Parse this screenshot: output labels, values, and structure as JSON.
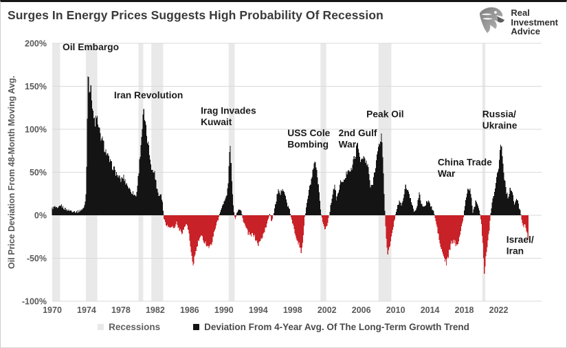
{
  "header": {
    "title": "Surges In Energy Prices Suggests High Probability Of Recession",
    "logo": {
      "icon": "eagle-icon",
      "line1": "Real",
      "line2": "Investment",
      "line3": "Advice"
    }
  },
  "legend": {
    "recessions_label": "Recessions",
    "deviation_label": "Deviation From 4-Year Avg. Of The Long-Term Growth Trend"
  },
  "colors": {
    "positive_bar": "#141414",
    "negative_bar": "#c82127",
    "recession_band": "#e9e9e9",
    "gridline": "#d9d9d9",
    "tick_text": "#595959",
    "annotation_text": "#1a1a1a"
  },
  "chart_data": {
    "type": "bar",
    "title": "Surges In Energy Prices Suggests High Probability Of Recession",
    "xlabel": "",
    "ylabel": "Oil Price Deviation From 48-Month Moving Avg.",
    "unit": "percent deviation",
    "frequency": "monthly",
    "grid": "horizontal",
    "legend_position": "bottom",
    "xlim_year": [
      1970,
      2027
    ],
    "ylim_pct": [
      -100,
      200
    ],
    "x_ticks": [
      1970,
      1974,
      1978,
      1982,
      1986,
      1990,
      1994,
      1998,
      2002,
      2006,
      2010,
      2014,
      2018,
      2022
    ],
    "y_ticks_pct": [
      200,
      150,
      100,
      50,
      0,
      -50,
      -100
    ],
    "recession_bands_year": [
      [
        1970.0,
        1970.92
      ],
      [
        1973.92,
        1975.25
      ],
      [
        1980.05,
        1980.6
      ],
      [
        1981.55,
        1982.92
      ],
      [
        1990.55,
        1991.25
      ],
      [
        2001.25,
        2001.92
      ],
      [
        2008.0,
        2009.5
      ],
      [
        2020.1,
        2020.45
      ]
    ],
    "annotations": [
      {
        "id": "oil-embargo",
        "lines": [
          "Oil Embargo"
        ],
        "year": 1971.2,
        "pct": 192
      },
      {
        "id": "iran-revolution",
        "lines": [
          "Iran Revolution"
        ],
        "year": 1977.2,
        "pct": 136
      },
      {
        "id": "iraq-invades-kuwait",
        "lines": [
          "Irag Invades",
          "Kuwait"
        ],
        "year": 1987.3,
        "pct": 118
      },
      {
        "id": "uss-cole-bombing",
        "lines": [
          "USS Cole",
          "Bombing"
        ],
        "year": 1997.4,
        "pct": 92
      },
      {
        "id": "2nd-gulf-war",
        "lines": [
          "2nd Gulf",
          "War"
        ],
        "year": 2003.35,
        "pct": 92
      },
      {
        "id": "peak-oil",
        "lines": [
          "Peak Oil"
        ],
        "year": 2006.6,
        "pct": 114
      },
      {
        "id": "china-trade-war",
        "lines": [
          "China Trade",
          "War"
        ],
        "year": 2014.9,
        "pct": 58
      },
      {
        "id": "russia-ukraine",
        "lines": [
          "Russia/",
          "Ukraine"
        ],
        "year": 2020.1,
        "pct": 114
      },
      {
        "id": "israel-iran",
        "lines": [
          "Israel/",
          "Iran"
        ],
        "year": 2022.9,
        "pct": -32
      }
    ],
    "series_name": "Oil price deviation from 48-month moving average (%)",
    "series_keypoints": [
      [
        1970.0,
        8
      ],
      [
        1970.3,
        10
      ],
      [
        1970.6,
        7
      ],
      [
        1971.0,
        12
      ],
      [
        1971.4,
        8
      ],
      [
        1971.8,
        6
      ],
      [
        1972.3,
        5
      ],
      [
        1972.8,
        4
      ],
      [
        1973.2,
        5
      ],
      [
        1973.6,
        8
      ],
      [
        1973.8,
        12
      ],
      [
        1973.92,
        25
      ],
      [
        1974.05,
        80
      ],
      [
        1974.15,
        173
      ],
      [
        1974.35,
        150
      ],
      [
        1974.6,
        138
      ],
      [
        1974.85,
        112
      ],
      [
        1975.0,
        103
      ],
      [
        1975.15,
        120
      ],
      [
        1975.35,
        102
      ],
      [
        1975.6,
        93
      ],
      [
        1975.9,
        85
      ],
      [
        1976.2,
        76
      ],
      [
        1976.5,
        68
      ],
      [
        1976.8,
        60
      ],
      [
        1977.1,
        56
      ],
      [
        1977.4,
        50
      ],
      [
        1977.7,
        45
      ],
      [
        1978.0,
        41
      ],
      [
        1978.3,
        45
      ],
      [
        1978.6,
        38
      ],
      [
        1978.9,
        32
      ],
      [
        1979.2,
        28
      ],
      [
        1979.5,
        25
      ],
      [
        1979.75,
        22
      ],
      [
        1979.95,
        38
      ],
      [
        1980.15,
        60
      ],
      [
        1980.35,
        85
      ],
      [
        1980.55,
        108
      ],
      [
        1980.65,
        120
      ],
      [
        1980.8,
        107
      ],
      [
        1981.0,
        93
      ],
      [
        1981.2,
        80
      ],
      [
        1981.4,
        68
      ],
      [
        1981.6,
        56
      ],
      [
        1981.75,
        48
      ],
      [
        1981.9,
        53
      ],
      [
        1982.05,
        40
      ],
      [
        1982.25,
        30
      ],
      [
        1982.45,
        22
      ],
      [
        1982.65,
        26
      ],
      [
        1982.85,
        14
      ],
      [
        1983.0,
        -4
      ],
      [
        1983.3,
        -11
      ],
      [
        1983.6,
        -14
      ],
      [
        1983.9,
        -12
      ],
      [
        1984.2,
        -16
      ],
      [
        1984.5,
        -8
      ],
      [
        1984.8,
        -17
      ],
      [
        1985.1,
        -20
      ],
      [
        1985.4,
        -15
      ],
      [
        1985.65,
        -9
      ],
      [
        1985.9,
        -20
      ],
      [
        1986.15,
        -45
      ],
      [
        1986.4,
        -58
      ],
      [
        1986.65,
        -47
      ],
      [
        1986.9,
        -35
      ],
      [
        1987.15,
        -27
      ],
      [
        1987.45,
        -25
      ],
      [
        1987.75,
        -31
      ],
      [
        1988.05,
        -35
      ],
      [
        1988.35,
        -38
      ],
      [
        1988.6,
        -32
      ],
      [
        1988.85,
        -20
      ],
      [
        1989.1,
        -10
      ],
      [
        1989.35,
        -5
      ],
      [
        1989.55,
        4
      ],
      [
        1989.8,
        10
      ],
      [
        1990.0,
        15
      ],
      [
        1990.2,
        20
      ],
      [
        1990.4,
        27
      ],
      [
        1990.55,
        45
      ],
      [
        1990.7,
        88
      ],
      [
        1990.85,
        55
      ],
      [
        1991.0,
        22
      ],
      [
        1991.15,
        6
      ],
      [
        1991.3,
        -6
      ],
      [
        1991.5,
        3
      ],
      [
        1991.75,
        8
      ],
      [
        1992.0,
        5
      ],
      [
        1992.2,
        -5
      ],
      [
        1992.5,
        -13
      ],
      [
        1992.8,
        -20
      ],
      [
        1993.1,
        -25
      ],
      [
        1993.4,
        -21
      ],
      [
        1993.7,
        -28
      ],
      [
        1994.0,
        -34
      ],
      [
        1994.3,
        -29
      ],
      [
        1994.6,
        -22
      ],
      [
        1994.9,
        -14
      ],
      [
        1995.15,
        -5
      ],
      [
        1995.35,
        3
      ],
      [
        1995.55,
        -8
      ],
      [
        1995.8,
        2
      ],
      [
        1996.0,
        12
      ],
      [
        1996.3,
        30
      ],
      [
        1996.55,
        22
      ],
      [
        1996.85,
        34
      ],
      [
        1997.1,
        24
      ],
      [
        1997.4,
        12
      ],
      [
        1997.7,
        5
      ],
      [
        1997.95,
        -8
      ],
      [
        1998.25,
        -20
      ],
      [
        1998.55,
        -28
      ],
      [
        1998.8,
        -36
      ],
      [
        1999.0,
        -43
      ],
      [
        1999.2,
        -28
      ],
      [
        1999.4,
        -4
      ],
      [
        1999.6,
        10
      ],
      [
        1999.85,
        24
      ],
      [
        2000.1,
        38
      ],
      [
        2000.4,
        52
      ],
      [
        2000.65,
        62
      ],
      [
        2000.85,
        48
      ],
      [
        2001.05,
        28
      ],
      [
        2001.3,
        3
      ],
      [
        2001.55,
        -10
      ],
      [
        2001.8,
        -17
      ],
      [
        2002.0,
        -11
      ],
      [
        2002.2,
        -2
      ],
      [
        2002.45,
        12
      ],
      [
        2002.7,
        28
      ],
      [
        2002.9,
        35
      ],
      [
        2003.1,
        18
      ],
      [
        2003.4,
        30
      ],
      [
        2003.7,
        43
      ],
      [
        2003.9,
        36
      ],
      [
        2004.2,
        46
      ],
      [
        2004.5,
        56
      ],
      [
        2004.8,
        50
      ],
      [
        2005.1,
        63
      ],
      [
        2005.4,
        76
      ],
      [
        2005.6,
        83
      ],
      [
        2005.8,
        70
      ],
      [
        2006.05,
        63
      ],
      [
        2006.3,
        68
      ],
      [
        2006.55,
        61
      ],
      [
        2006.85,
        55
      ],
      [
        2007.1,
        31
      ],
      [
        2007.3,
        36
      ],
      [
        2007.6,
        55
      ],
      [
        2007.85,
        70
      ],
      [
        2008.1,
        80
      ],
      [
        2008.35,
        95
      ],
      [
        2008.5,
        70
      ],
      [
        2008.65,
        28
      ],
      [
        2008.8,
        -6
      ],
      [
        2008.95,
        -32
      ],
      [
        2009.1,
        -44
      ],
      [
        2009.3,
        -38
      ],
      [
        2009.55,
        -24
      ],
      [
        2009.75,
        -12
      ],
      [
        2009.95,
        -2
      ],
      [
        2010.15,
        8
      ],
      [
        2010.4,
        16
      ],
      [
        2010.65,
        12
      ],
      [
        2010.9,
        18
      ],
      [
        2011.15,
        35
      ],
      [
        2011.4,
        28
      ],
      [
        2011.65,
        22
      ],
      [
        2011.9,
        14
      ],
      [
        2012.2,
        4
      ],
      [
        2012.5,
        12
      ],
      [
        2012.75,
        25
      ],
      [
        2013.0,
        15
      ],
      [
        2013.3,
        8
      ],
      [
        2013.6,
        15
      ],
      [
        2013.85,
        18
      ],
      [
        2014.1,
        10
      ],
      [
        2014.4,
        5
      ],
      [
        2014.65,
        -6
      ],
      [
        2014.9,
        -18
      ],
      [
        2015.15,
        -32
      ],
      [
        2015.4,
        -43
      ],
      [
        2015.7,
        -51
      ],
      [
        2015.95,
        -57
      ],
      [
        2016.2,
        -45
      ],
      [
        2016.5,
        -32
      ],
      [
        2016.8,
        -30
      ],
      [
        2017.05,
        -35
      ],
      [
        2017.3,
        -30
      ],
      [
        2017.6,
        -18
      ],
      [
        2017.85,
        -6
      ],
      [
        2018.1,
        12
      ],
      [
        2018.35,
        28
      ],
      [
        2018.6,
        32
      ],
      [
        2018.8,
        22
      ],
      [
        2019.0,
        4
      ],
      [
        2019.2,
        10
      ],
      [
        2019.4,
        18
      ],
      [
        2019.6,
        12
      ],
      [
        2019.8,
        4
      ],
      [
        2020.0,
        -10
      ],
      [
        2020.2,
        -38
      ],
      [
        2020.35,
        -70
      ],
      [
        2020.5,
        -50
      ],
      [
        2020.7,
        -35
      ],
      [
        2020.9,
        -18
      ],
      [
        2021.1,
        5
      ],
      [
        2021.35,
        20
      ],
      [
        2021.6,
        35
      ],
      [
        2021.85,
        48
      ],
      [
        2022.05,
        62
      ],
      [
        2022.3,
        88
      ],
      [
        2022.5,
        58
      ],
      [
        2022.7,
        42
      ],
      [
        2022.9,
        28
      ],
      [
        2023.1,
        20
      ],
      [
        2023.35,
        32
      ],
      [
        2023.6,
        25
      ],
      [
        2023.85,
        12
      ],
      [
        2024.1,
        20
      ],
      [
        2024.3,
        14
      ],
      [
        2024.5,
        6
      ],
      [
        2024.7,
        -6
      ],
      [
        2024.9,
        -14
      ],
      [
        2025.1,
        -10
      ],
      [
        2025.3,
        -22
      ],
      [
        2025.45,
        -26
      ]
    ]
  }
}
